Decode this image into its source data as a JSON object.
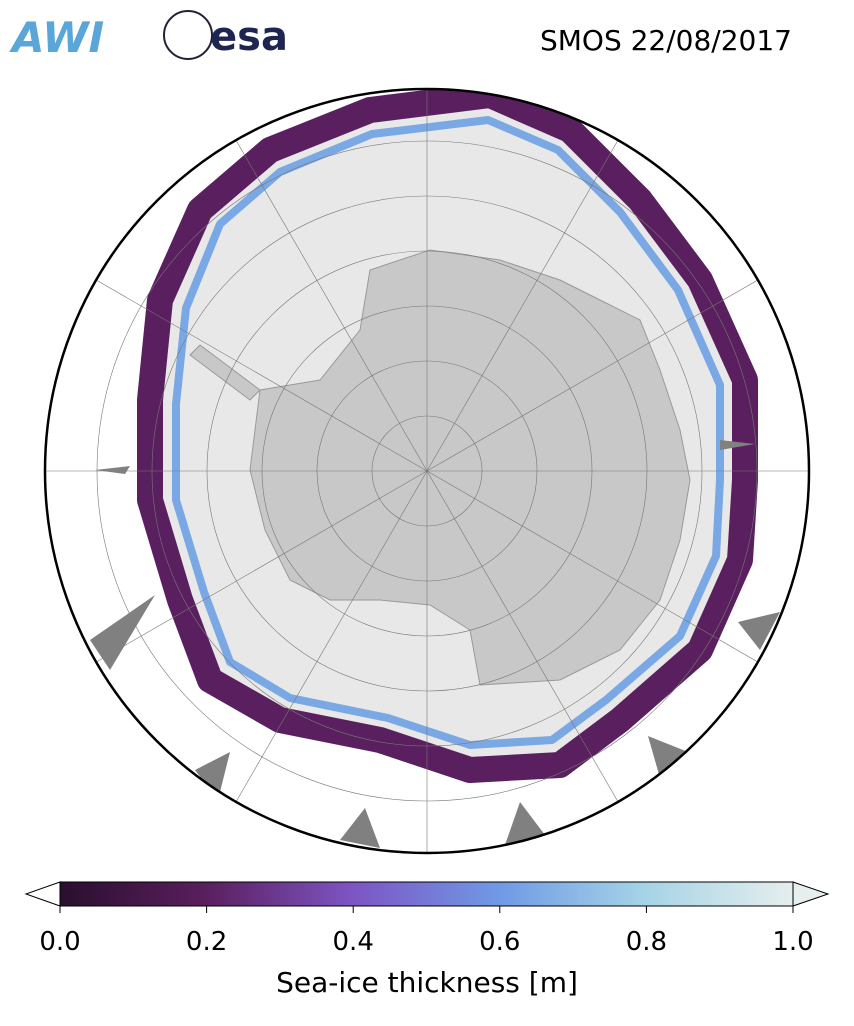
{
  "header": {
    "logos": [
      "AWI",
      "esa"
    ],
    "title": "SMOS 22/08/2017"
  },
  "colorbar": {
    "label": "Sea-ice thickness [m]",
    "lim": [
      0,
      1
    ],
    "ticks": [
      {
        "value": 0,
        "label": "0.0"
      },
      {
        "value": 0.2,
        "label": "0.2"
      },
      {
        "value": 0.4,
        "label": "0.4"
      },
      {
        "value": 0.6,
        "label": "0.6"
      },
      {
        "value": 0.8,
        "label": "0.8"
      },
      {
        "value": 1,
        "label": "1.0"
      }
    ],
    "colors": [
      "#2a0f2e",
      "#5a1f5e",
      "#7d55c4",
      "#6f9ae6",
      "#a6d4e6",
      "#e6eeee"
    ]
  }
}
